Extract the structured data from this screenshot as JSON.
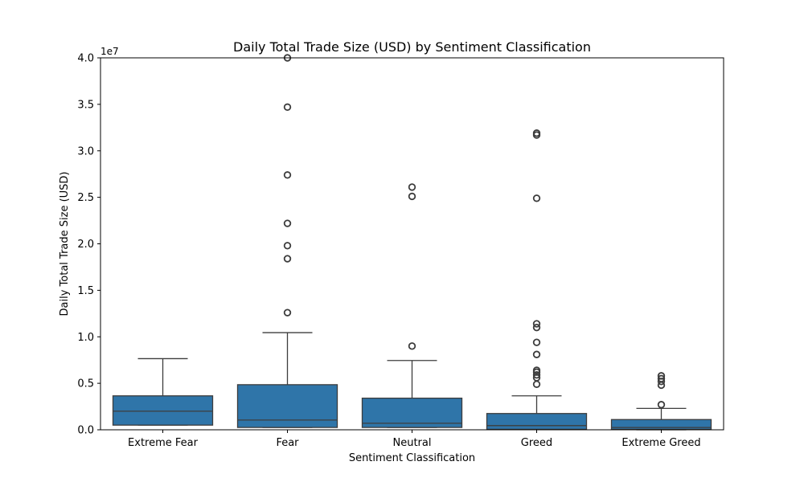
{
  "chart_data": {
    "type": "box",
    "title": "Daily Total Trade Size (USD) by Sentiment Classification",
    "xlabel": "Sentiment Classification",
    "ylabel": "Daily Total Trade Size (USD)",
    "y_offset_label": "1e7",
    "ylim": [
      0,
      40000000
    ],
    "y_scale_factor": 10000000,
    "y_ticks": [
      0,
      5000000,
      10000000,
      15000000,
      20000000,
      25000000,
      30000000,
      35000000,
      40000000
    ],
    "y_tick_labels": [
      "0.0",
      "0.5",
      "1.0",
      "1.5",
      "2.0",
      "2.5",
      "3.0",
      "3.5",
      "4.0"
    ],
    "grid": false,
    "box_color": "#2f75a9",
    "categories": [
      "Extreme Fear",
      "Fear",
      "Neutral",
      "Greed",
      "Extreme Greed"
    ],
    "boxes": [
      {
        "category": "Extreme Fear",
        "whisker_low": 500000,
        "q1": 500000,
        "median": 2000000,
        "q3": 3650000,
        "whisker_high": 7650000,
        "outliers": []
      },
      {
        "category": "Fear",
        "whisker_low": 250000,
        "q1": 250000,
        "median": 1050000,
        "q3": 4850000,
        "whisker_high": 10450000,
        "outliers": [
          12600000,
          18400000,
          19800000,
          22200000,
          27400000,
          34700000,
          40000000
        ]
      },
      {
        "category": "Neutral",
        "whisker_low": 250000,
        "q1": 250000,
        "median": 700000,
        "q3": 3400000,
        "whisker_high": 7450000,
        "outliers": [
          9000000,
          25100000,
          26100000
        ]
      },
      {
        "category": "Greed",
        "whisker_low": 50000,
        "q1": 50000,
        "median": 450000,
        "q3": 1750000,
        "whisker_high": 3650000,
        "outliers": [
          4900000,
          5600000,
          5900000,
          6200000,
          6400000,
          8100000,
          9400000,
          11000000,
          11400000,
          24900000,
          31700000,
          31900000
        ]
      },
      {
        "category": "Extreme Greed",
        "whisker_low": 0,
        "q1": 50000,
        "median": 250000,
        "q3": 1100000,
        "whisker_high": 2300000,
        "outliers": [
          2700000,
          4800000,
          5200000,
          5500000,
          5800000
        ]
      }
    ]
  }
}
